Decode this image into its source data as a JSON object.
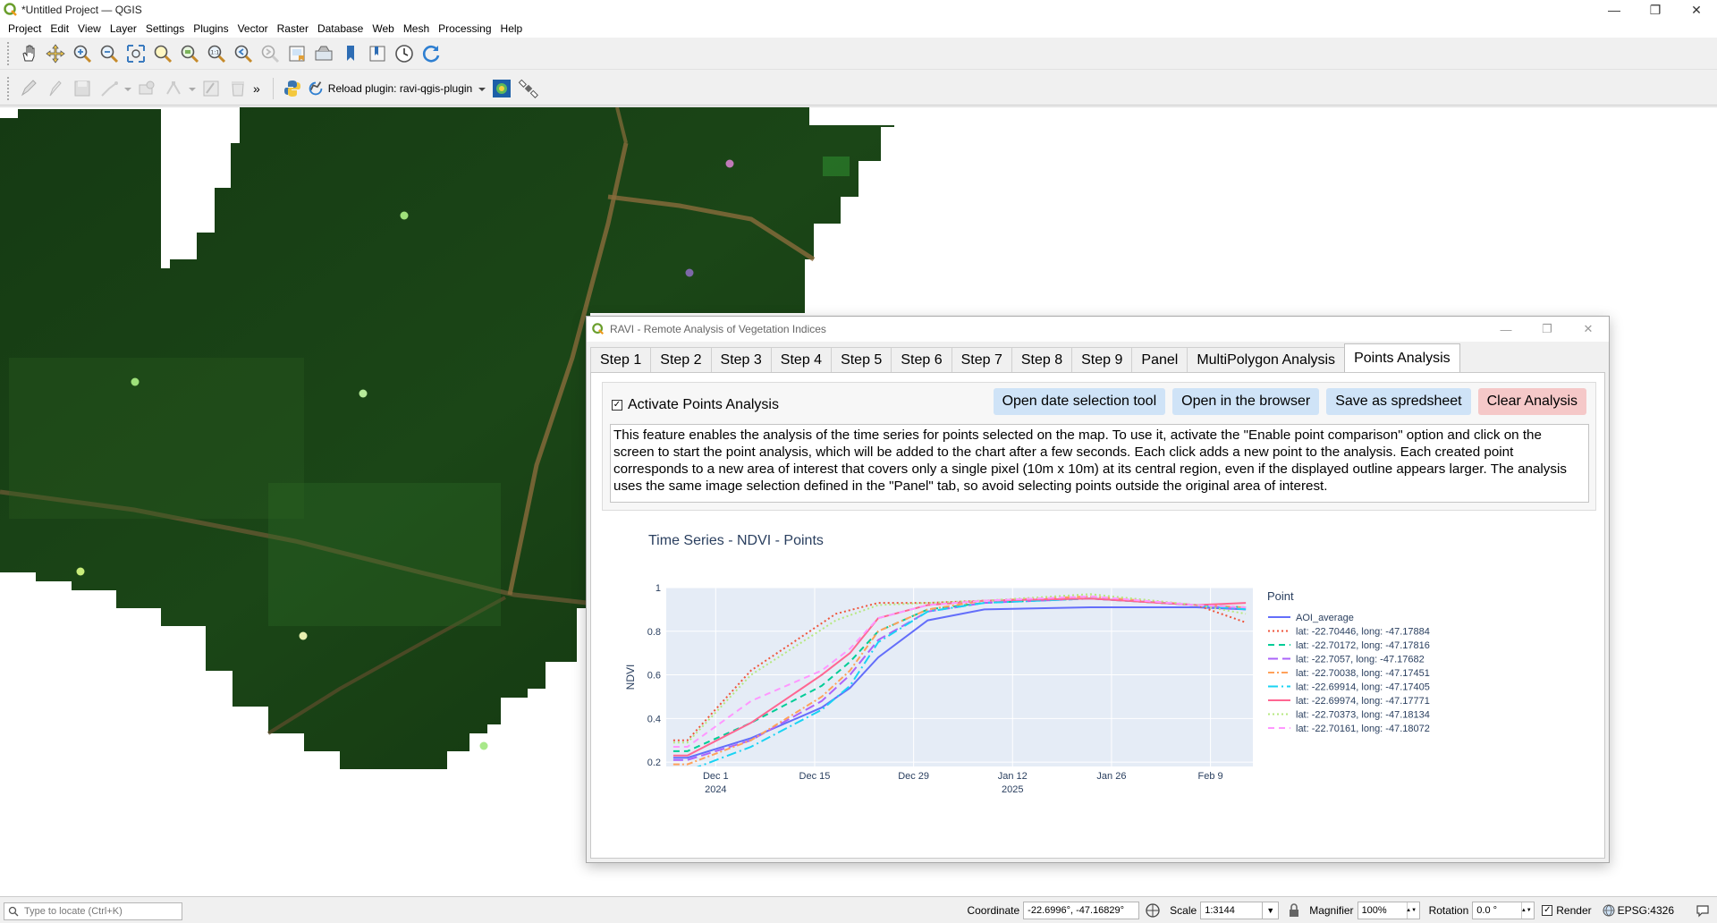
{
  "window": {
    "title": "*Untitled Project — QGIS",
    "minimize": "—",
    "maximize": "❐",
    "close": "✕"
  },
  "menu": [
    "Project",
    "Edit",
    "View",
    "Layer",
    "Settings",
    "Plugins",
    "Vector",
    "Raster",
    "Database",
    "Web",
    "Mesh",
    "Processing",
    "Help"
  ],
  "toolbar1_icons": [
    "pan-icon",
    "pan-to-selection-icon",
    "zoom-in-icon",
    "zoom-out-icon",
    "zoom-full-icon",
    "zoom-to-selection-icon",
    "zoom-to-layer-icon",
    "zoom-native-icon",
    "zoom-last-icon",
    "zoom-next-icon",
    "new-bookmark-icon",
    "show-bookmarks-icon",
    "map-tips-icon",
    "spatial-bookmark-icon",
    "temporal-controller-icon",
    "refresh-icon"
  ],
  "toolbar2": {
    "reload_label": "Reload plugin: ravi-qgis-plugin",
    "overflow": "»"
  },
  "dialog": {
    "title": "RAVI - Remote Analysis of Vegetation Indices",
    "tabs": [
      "Step 1",
      "Step 2",
      "Step 3",
      "Step 4",
      "Step 5",
      "Step 6",
      "Step 7",
      "Step 8",
      "Step 9",
      "Panel",
      "MultiPolygon Analysis",
      "Points Analysis"
    ],
    "active_tab": "Points Analysis",
    "checkbox_label": "Activate Points Analysis",
    "checkbox_checked": true,
    "buttons": {
      "date_tool": "Open date selection tool",
      "browser": "Open in the browser",
      "spreadsheet": "Save as spredsheet",
      "clear": "Clear Analysis"
    },
    "description": "This feature enables the analysis of the time series for points selected on the map. To use it, activate the \"Enable point comparison\" option and click on the screen to start the point analysis, which will be added to the chart after a few seconds. Each click adds a new point to the analysis. Each created point corresponds to a new area of interest that covers only a single pixel (10m x 10m) at its central region, even if the displayed outline appears larger. The analysis uses the same image selection defined in the \"Panel\" tab, so avoid selecting points outside the original area of interest."
  },
  "chart_data": {
    "type": "line",
    "title": "Time Series - NDVI - Points",
    "ylabel": "NDVI",
    "xlabel": "",
    "ylim": [
      0.18,
      1.0
    ],
    "xlim": [
      "2024-11-24",
      "2025-02-15"
    ],
    "x_ticks": [
      {
        "date": "2024-12-01",
        "label": "Dec 1",
        "sub": "2024"
      },
      {
        "date": "2024-12-15",
        "label": "Dec 15",
        "sub": ""
      },
      {
        "date": "2024-12-29",
        "label": "Dec 29",
        "sub": ""
      },
      {
        "date": "2025-01-12",
        "label": "Jan 12",
        "sub": "2025"
      },
      {
        "date": "2025-01-26",
        "label": "Jan 26",
        "sub": ""
      },
      {
        "date": "2025-02-09",
        "label": "Feb 9",
        "sub": ""
      }
    ],
    "y_ticks": [
      0.2,
      0.4,
      0.6,
      0.8,
      1
    ],
    "legend_title": "Point",
    "legend_position": "right",
    "grid": true,
    "background": "#e5ecf6",
    "series": [
      {
        "name": "AOI_average",
        "color": "#636efa",
        "dash": "solid",
        "x": [
          "2024-11-25",
          "2024-11-27",
          "2024-12-06",
          "2024-12-16",
          "2024-12-20",
          "2024-12-24",
          "2024-12-31",
          "2025-01-08",
          "2025-01-23",
          "2025-02-07",
          "2025-02-14"
        ],
        "y": [
          0.22,
          0.22,
          0.31,
          0.45,
          0.54,
          0.68,
          0.85,
          0.9,
          0.91,
          0.91,
          0.9
        ]
      },
      {
        "name": "lat: -22.70446, long: -47.17884",
        "color": "#ef553b",
        "dash": "dot",
        "x": [
          "2024-11-25",
          "2024-11-27",
          "2024-12-06",
          "2024-12-18",
          "2024-12-24",
          "2024-12-31",
          "2025-01-08",
          "2025-01-23",
          "2025-02-07",
          "2025-02-14"
        ],
        "y": [
          0.3,
          0.3,
          0.62,
          0.88,
          0.93,
          0.93,
          0.94,
          0.95,
          0.92,
          0.84
        ]
      },
      {
        "name": "lat: -22.70172, long: -47.17816",
        "color": "#00cc96",
        "dash": "dash",
        "x": [
          "2024-11-25",
          "2024-11-27",
          "2024-12-06",
          "2024-12-16",
          "2024-12-20",
          "2024-12-24",
          "2024-12-31",
          "2025-01-08",
          "2025-01-23",
          "2025-02-07",
          "2025-02-14"
        ],
        "y": [
          0.25,
          0.25,
          0.38,
          0.55,
          0.66,
          0.8,
          0.9,
          0.93,
          0.95,
          0.92,
          0.91
        ]
      },
      {
        "name": "lat: -22.7057, long: -47.17682",
        "color": "#ab63fa",
        "dash": "longdash",
        "x": [
          "2024-11-25",
          "2024-11-27",
          "2024-12-06",
          "2024-12-16",
          "2024-12-20",
          "2024-12-24",
          "2024-12-31",
          "2025-01-08",
          "2025-01-23",
          "2025-02-07",
          "2025-02-14"
        ],
        "y": [
          0.21,
          0.21,
          0.3,
          0.48,
          0.6,
          0.76,
          0.89,
          0.93,
          0.95,
          0.92,
          0.9
        ]
      },
      {
        "name": "lat: -22.70038, long: -47.17451",
        "color": "#ffa15a",
        "dash": "dashdot",
        "x": [
          "2024-11-25",
          "2024-11-27",
          "2024-12-06",
          "2024-12-16",
          "2024-12-20",
          "2024-12-24",
          "2024-12-31",
          "2025-01-08",
          "2025-01-23",
          "2025-02-07",
          "2025-02-14"
        ],
        "y": [
          0.19,
          0.19,
          0.3,
          0.5,
          0.62,
          0.8,
          0.9,
          0.94,
          0.96,
          0.92,
          0.91
        ]
      },
      {
        "name": "lat: -22.69914, long: -47.17405",
        "color": "#19d3f3",
        "dash": "longdashdot",
        "x": [
          "2024-11-25",
          "2024-11-27",
          "2024-12-06",
          "2024-12-16",
          "2024-12-20",
          "2024-12-24",
          "2024-12-31",
          "2025-01-08",
          "2025-01-23",
          "2025-02-07",
          "2025-02-14"
        ],
        "y": [
          0.16,
          0.16,
          0.27,
          0.44,
          0.55,
          0.75,
          0.89,
          0.93,
          0.95,
          0.92,
          0.9
        ]
      },
      {
        "name": "lat: -22.69974, long: -47.17771",
        "color": "#ff6692",
        "dash": "solid",
        "x": [
          "2024-11-25",
          "2024-11-27",
          "2024-12-06",
          "2024-12-16",
          "2024-12-20",
          "2024-12-24",
          "2024-12-31",
          "2025-01-08",
          "2025-01-23",
          "2025-02-07",
          "2025-02-14"
        ],
        "y": [
          0.23,
          0.23,
          0.38,
          0.6,
          0.7,
          0.86,
          0.92,
          0.94,
          0.95,
          0.92,
          0.93
        ]
      },
      {
        "name": "lat: -22.70373, long: -47.18134",
        "color": "#b6e880",
        "dash": "dot",
        "x": [
          "2024-11-25",
          "2024-11-27",
          "2024-12-06",
          "2024-12-18",
          "2024-12-24",
          "2024-12-31",
          "2025-01-08",
          "2025-01-23",
          "2025-02-07",
          "2025-02-14"
        ],
        "y": [
          0.29,
          0.29,
          0.6,
          0.85,
          0.92,
          0.93,
          0.94,
          0.97,
          0.92,
          0.88
        ]
      },
      {
        "name": "lat: -22.70161, long: -47.18072",
        "color": "#ff97ff",
        "dash": "dash",
        "x": [
          "2024-11-25",
          "2024-11-27",
          "2024-12-06",
          "2024-12-16",
          "2024-12-20",
          "2024-12-24",
          "2024-12-31",
          "2025-01-08",
          "2025-01-23",
          "2025-02-07",
          "2025-02-14"
        ],
        "y": [
          0.27,
          0.27,
          0.48,
          0.62,
          0.72,
          0.86,
          0.92,
          0.94,
          0.96,
          0.92,
          0.91
        ]
      }
    ]
  },
  "status": {
    "locate_placeholder": "Type to locate (Ctrl+K)",
    "coordinate_label": "Coordinate",
    "coordinate_value": "-22.6996°, -47.16829°",
    "scale_label": "Scale",
    "scale_value": "1:3144",
    "magnifier_label": "Magnifier",
    "magnifier_value": "100%",
    "rotation_label": "Rotation",
    "rotation_value": "0.0 °",
    "render_label": "Render",
    "crs_label": "EPSG:4326"
  },
  "colors": {
    "accent_button": "#cfe3f7",
    "danger_button": "#f5c8c8",
    "vegetation_dark": "#1a3d16"
  }
}
